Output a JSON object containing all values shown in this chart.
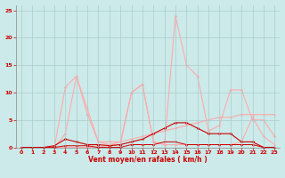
{
  "x": [
    0,
    1,
    2,
    3,
    4,
    5,
    6,
    7,
    8,
    9,
    10,
    11,
    12,
    13,
    14,
    15,
    16,
    17,
    18,
    19,
    20,
    21,
    22,
    23
  ],
  "line_dark1": [
    0,
    0,
    0,
    0,
    0.3,
    0.3,
    0.3,
    0,
    0,
    0,
    0.5,
    0.5,
    0.5,
    1,
    1,
    0.5,
    0.5,
    0.5,
    0.5,
    0.5,
    0.5,
    0.5,
    0,
    0
  ],
  "line_dark2": [
    0,
    0,
    0,
    0.3,
    1.5,
    1.0,
    0.5,
    0.5,
    0.3,
    0.5,
    1.0,
    1.5,
    2.5,
    3.5,
    4.5,
    4.5,
    3.5,
    2.5,
    2.5,
    2.5,
    1.0,
    1.0,
    0,
    0
  ],
  "line_dark3": [
    0,
    0,
    0,
    0,
    0,
    0,
    0,
    0,
    0,
    0,
    0,
    0,
    0,
    0,
    0,
    0,
    0,
    0,
    0,
    0,
    0,
    0,
    0,
    0
  ],
  "line_light1": [
    0,
    0,
    0,
    0,
    2.5,
    13,
    7,
    1,
    0.5,
    0.5,
    10,
    11.5,
    1,
    0.5,
    0.5,
    0.5,
    0.5,
    0.5,
    0.5,
    0.5,
    1,
    5.5,
    2,
    0.5
  ],
  "line_light2": [
    0,
    0,
    0,
    0,
    11,
    13,
    6,
    1,
    1,
    1,
    10,
    11.5,
    1,
    0.5,
    24,
    15,
    13,
    3,
    4,
    10.5,
    10.5,
    5,
    5,
    2
  ],
  "line_light3": [
    0,
    0,
    0,
    0,
    0,
    0,
    0,
    0,
    0.5,
    1,
    1.5,
    2,
    2.5,
    3,
    3.5,
    4,
    4.5,
    5,
    5.5,
    5.5,
    6,
    6,
    6,
    6
  ],
  "bg_color": "#cceaea",
  "grid_color": "#aacccc",
  "dark_color": "#cc0000",
  "light_color": "#ffaaaa",
  "xlabel": "Vent moyen/en rafales ( km/h )",
  "ylim": [
    0,
    26
  ],
  "xlim": [
    -0.5,
    23.5
  ],
  "yticks": [
    0,
    5,
    10,
    15,
    20,
    25
  ],
  "xticks": [
    0,
    1,
    2,
    3,
    4,
    5,
    6,
    7,
    8,
    9,
    10,
    11,
    12,
    13,
    14,
    15,
    16,
    17,
    18,
    19,
    20,
    21,
    22,
    23
  ]
}
